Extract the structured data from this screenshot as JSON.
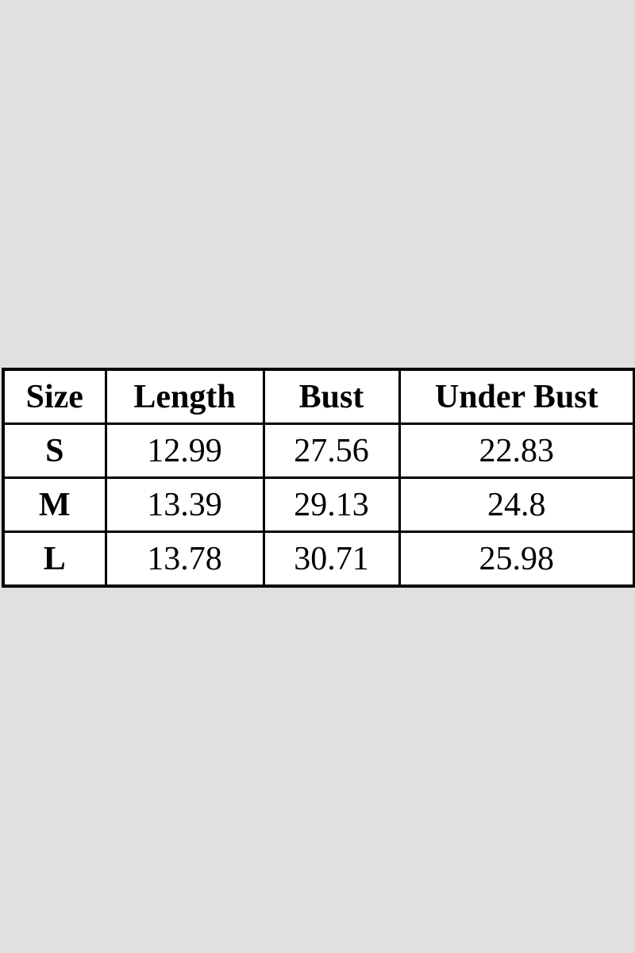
{
  "colors": {
    "page_background": "#e0e0e0",
    "table_background": "#ffffff",
    "border": "#000000",
    "text": "#000000"
  },
  "chart_data": {
    "type": "table",
    "columns": [
      "Size",
      "Length",
      "Bust",
      "Under Bust"
    ],
    "rows": [
      [
        "S",
        "12.99",
        "27.56",
        "22.83"
      ],
      [
        "M",
        "13.39",
        "29.13",
        "24.8"
      ],
      [
        "L",
        "13.78",
        "30.71",
        "25.98"
      ]
    ]
  }
}
